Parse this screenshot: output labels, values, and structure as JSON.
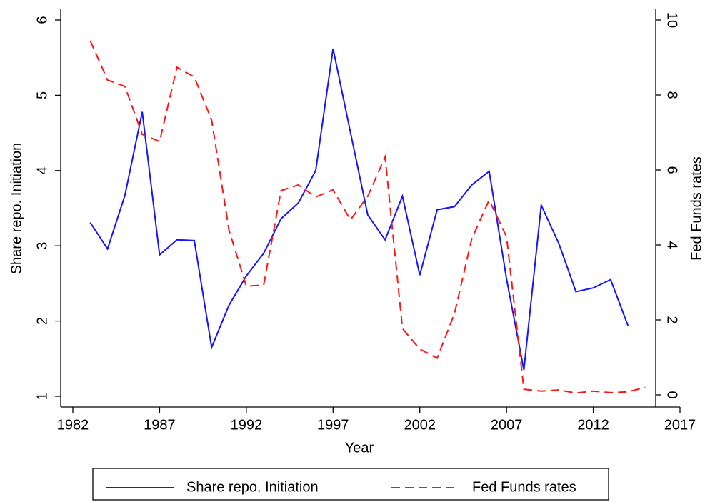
{
  "chart_data": {
    "type": "line",
    "x_label": "Year",
    "y_label": "Share repo. Initiation",
    "y2_label": "Fed Funds rates",
    "xlim": [
      1982,
      2017
    ],
    "xticks": [
      1982,
      1987,
      1992,
      1997,
      2002,
      2007,
      2012,
      2017
    ],
    "ylim": [
      1,
      6
    ],
    "yticks": [
      1,
      2,
      3,
      4,
      5,
      6
    ],
    "y2lim": [
      0,
      10
    ],
    "y2ticks": [
      0,
      2,
      4,
      6,
      8,
      10
    ],
    "legend": "bottom",
    "series": [
      {
        "name": "Share repo. Initiation",
        "color": "#1414ff",
        "dash": false,
        "x": [
          1983,
          1984,
          1985,
          1986,
          1987,
          1988,
          1989,
          1990,
          1991,
          1992,
          1993,
          1994,
          1995,
          1996,
          1997,
          1998,
          1999,
          2000,
          2001,
          2002,
          2003,
          2004,
          2005,
          2006,
          2007,
          2008,
          2009,
          2010,
          2011,
          2012,
          2013,
          2014
        ],
        "values": [
          3.31,
          2.96,
          3.67,
          4.78,
          2.88,
          3.08,
          3.07,
          1.65,
          2.21,
          2.6,
          2.9,
          3.36,
          3.57,
          4.0,
          5.62,
          4.51,
          3.41,
          3.08,
          3.66,
          2.61,
          3.48,
          3.52,
          3.81,
          3.99,
          2.56,
          1.35,
          3.54,
          3.04,
          2.39,
          2.44,
          2.55,
          1.94
        ]
      },
      {
        "name": "Fed Funds rates",
        "color": "#ff1414",
        "dash": true,
        "axis": "y2",
        "x": [
          1983,
          1984,
          1985,
          1986,
          1987,
          1988,
          1989,
          1990,
          1991,
          1992,
          1993,
          1994,
          1995,
          1996,
          1997,
          1998,
          1999,
          2000,
          2001,
          2002,
          2003,
          2004,
          2005,
          2006,
          2007,
          2008,
          2009,
          2010,
          2011,
          2012,
          2013,
          2014,
          2015
        ],
        "values": [
          9.45,
          8.4,
          8.23,
          6.95,
          6.76,
          8.74,
          8.48,
          7.33,
          4.4,
          2.9,
          2.93,
          5.45,
          5.6,
          5.28,
          5.47,
          4.67,
          5.3,
          6.35,
          1.77,
          1.22,
          0.98,
          2.17,
          4.17,
          5.2,
          4.22,
          0.15,
          0.1,
          0.13,
          0.05,
          0.1,
          0.06,
          0.08,
          0.2
        ]
      }
    ]
  }
}
